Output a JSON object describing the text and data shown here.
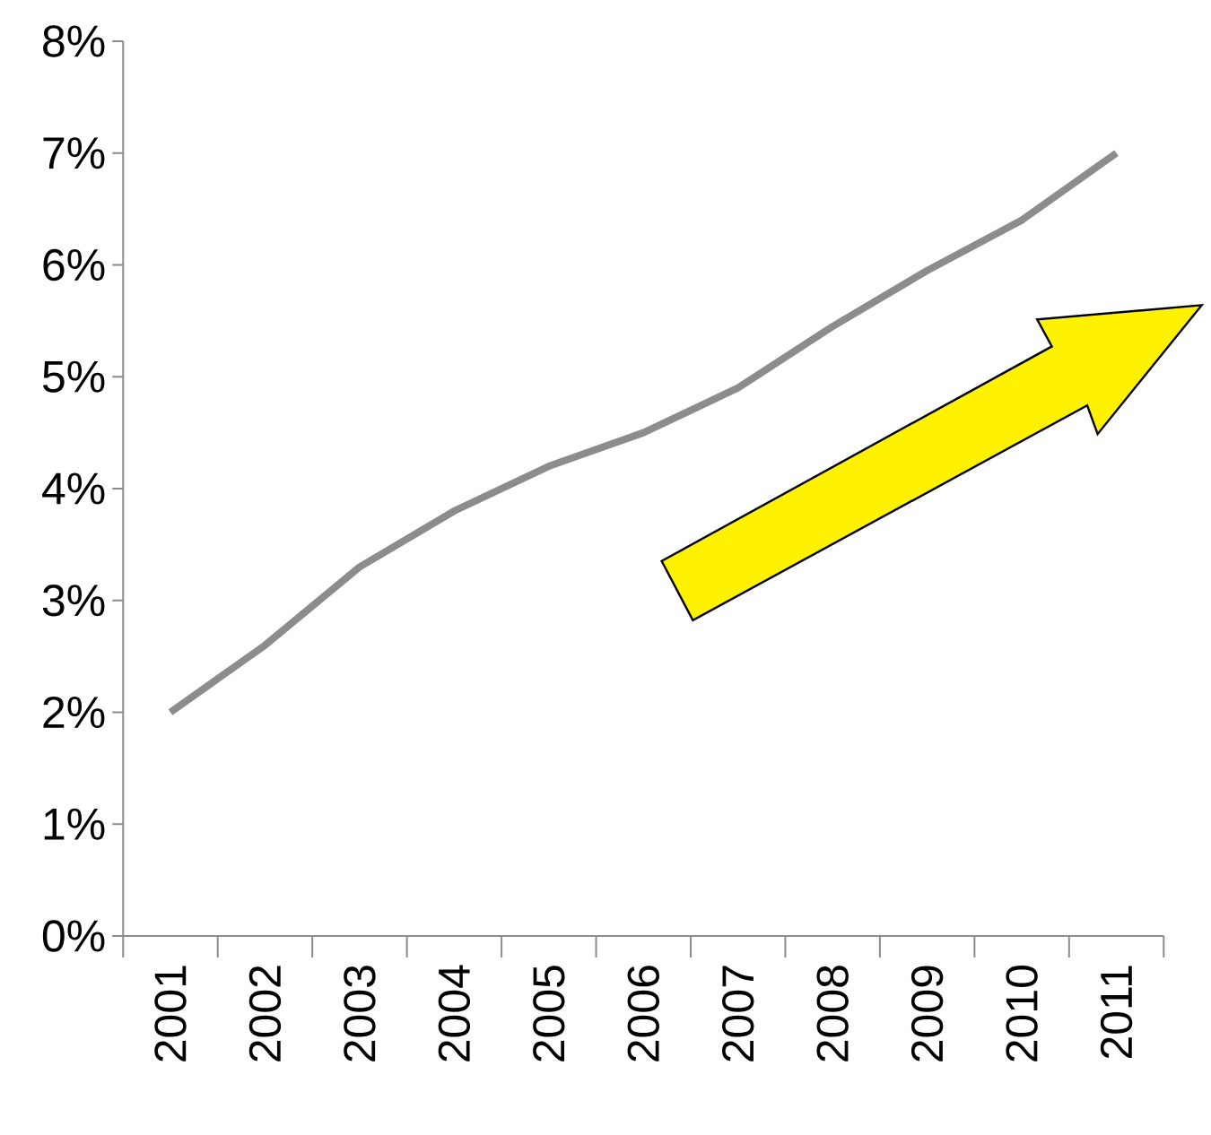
{
  "chart_data": {
    "type": "line",
    "categories": [
      "2001",
      "2002",
      "2003",
      "2004",
      "2005",
      "2006",
      "2007",
      "2008",
      "2009",
      "2010",
      "2011"
    ],
    "series": [
      {
        "color": "#8c8c8c",
        "values": [
          2.0,
          2.6,
          3.3,
          3.8,
          4.2,
          4.5,
          4.9,
          5.45,
          5.95,
          6.4,
          7.0
        ]
      }
    ],
    "ylim": [
      0,
      8
    ],
    "yticks": [
      {
        "value": 0,
        "label": "0%"
      },
      {
        "value": 1,
        "label": "1%"
      },
      {
        "value": 2,
        "label": "2%"
      },
      {
        "value": 3,
        "label": "3%"
      },
      {
        "value": 4,
        "label": "4%"
      },
      {
        "value": 5,
        "label": "5%"
      },
      {
        "value": 6,
        "label": "6%"
      },
      {
        "value": 7,
        "label": "7%"
      },
      {
        "value": 8,
        "label": "8%"
      }
    ],
    "marker": "none",
    "line_style": "solid"
  }
}
